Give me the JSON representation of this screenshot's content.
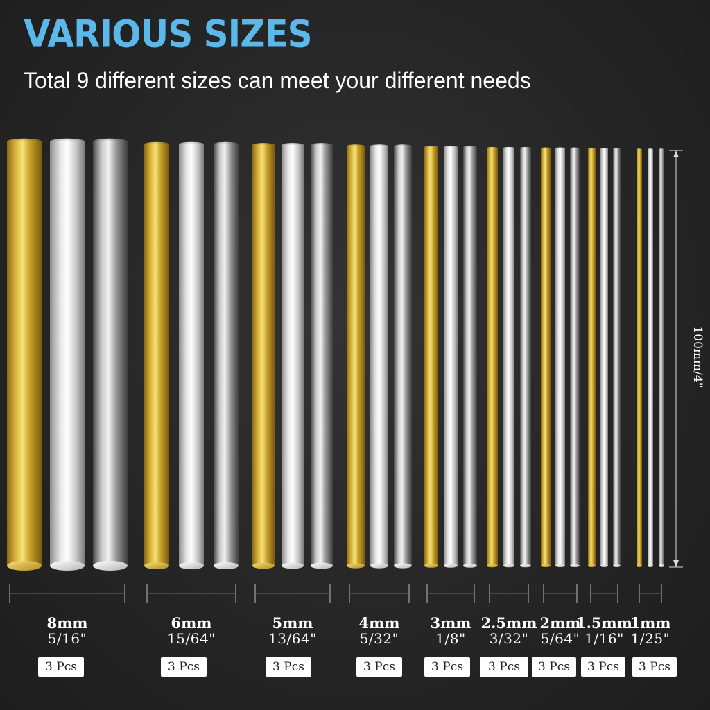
{
  "header": {
    "title": "VARIOUS SIZES",
    "subtitle": "Total 9 different sizes can meet your different needs",
    "title_color": "#5ab8ea"
  },
  "length_label": "100mm/4\"",
  "rod_colors": [
    "gold",
    "silver",
    "steel"
  ],
  "sizes": [
    {
      "mm": "8mm",
      "inch": "5/16\"",
      "pcs": "3 Pcs",
      "diameter_mm": 8
    },
    {
      "mm": "6mm",
      "inch": "15/64\"",
      "pcs": "3 Pcs",
      "diameter_mm": 6
    },
    {
      "mm": "5mm",
      "inch": "13/64\"",
      "pcs": "3 Pcs",
      "diameter_mm": 5
    },
    {
      "mm": "4mm",
      "inch": "5/32\"",
      "pcs": "3 Pcs",
      "diameter_mm": 4
    },
    {
      "mm": "3mm",
      "inch": "1/8\"",
      "pcs": "3 Pcs",
      "diameter_mm": 3
    },
    {
      "mm": "2.5mm",
      "inch": "3/32\"",
      "pcs": "3 Pcs",
      "diameter_mm": 2.5
    },
    {
      "mm": "2mm",
      "inch": "5/64\"",
      "pcs": "3 Pcs",
      "diameter_mm": 2
    },
    {
      "mm": "1.5mm",
      "inch": "1/16\"",
      "pcs": "3 Pcs",
      "diameter_mm": 1.5
    },
    {
      "mm": "1mm",
      "inch": "1/25\"",
      "pcs": "3 Pcs",
      "diameter_mm": 1
    }
  ]
}
